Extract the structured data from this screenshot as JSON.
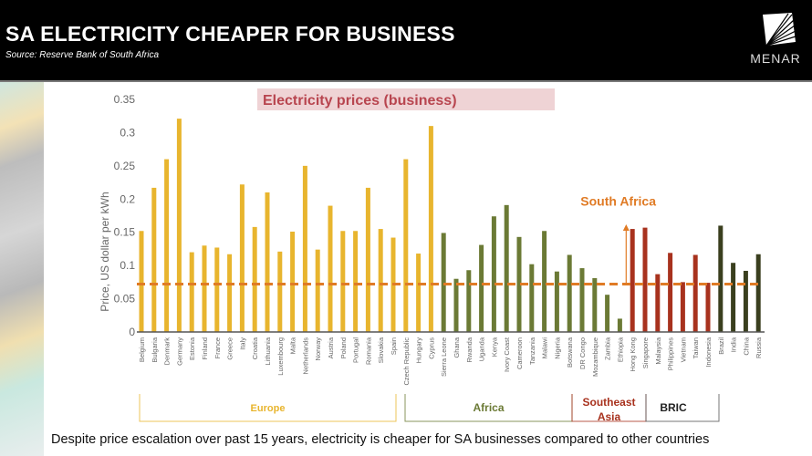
{
  "header": {
    "title": "SA ELECTRICITY CHEAPER FOR BUSINESS",
    "source": "Source: Reserve Bank of South Africa",
    "logo_text": "MENAR",
    "logo_icon": "menar-fan-logo-icon"
  },
  "footer": {
    "caption": "Despite price escalation over past 15 years, electricity is cheaper for SA businesses compared to other countries"
  },
  "colors": {
    "europe": "#E8B52E",
    "africa": "#6B7A35",
    "southeast_asia": "#A8321E",
    "bric": "#3A3F1E",
    "reference_line": "#E07B25",
    "title_banner_bg": "#EFD3D5",
    "title_banner_text": "#B8454F"
  },
  "chart_data": {
    "type": "bar",
    "title": "Electricity prices (business)",
    "xlabel": "",
    "ylabel": "Price, US dollar per kWh",
    "ylim": [
      0,
      0.35
    ],
    "yticks": [
      "0",
      "0.05",
      "0.1",
      "0.15",
      "0.2",
      "0.25",
      "0.3",
      "0.35"
    ],
    "grid": false,
    "reference_line": {
      "label": "South Africa",
      "value": 0.072
    },
    "categories": [
      "Belgium",
      "Bulgaria",
      "Denmark",
      "Germany",
      "Estonia",
      "Finland",
      "France",
      "Greece",
      "Italy",
      "Croatia",
      "Lithuania",
      "Luxembourg",
      "Malta",
      "Netherlands",
      "Norway",
      "Austria",
      "Poland",
      "Portugal",
      "Romania",
      "Slovakia",
      "Spain",
      "Czech Republic",
      "Hungary",
      "Cyprus",
      "Sierra Leone",
      "Ghana",
      "Rwanda",
      "Uganda",
      "Kenya",
      "Ivory Coast",
      "Cameroon",
      "Tanzania",
      "Malawi",
      "Nigeria",
      "Botswana",
      "DR Congo",
      "Mozambique",
      "Zambia",
      "Ethiopia",
      "Hong Kong",
      "Singapore",
      "Malaysia",
      "Philippines",
      "Vietnam",
      "Taiwan",
      "Indonesia",
      "Brazil",
      "India",
      "China",
      "Russia"
    ],
    "values": [
      0.152,
      0.217,
      0.26,
      0.321,
      0.12,
      0.13,
      0.127,
      0.117,
      0.222,
      0.158,
      0.21,
      0.121,
      0.151,
      0.25,
      0.124,
      0.19,
      0.152,
      0.152,
      0.217,
      0.155,
      0.142,
      0.26,
      0.118,
      0.31,
      0.149,
      0.08,
      0.093,
      0.131,
      0.174,
      0.191,
      0.143,
      0.102,
      0.152,
      0.091,
      0.116,
      0.096,
      0.081,
      0.056,
      0.02,
      0.155,
      0.157,
      0.087,
      0.119,
      0.075,
      0.116,
      0.074,
      0.16,
      0.104,
      0.092,
      0.117
    ],
    "groups": [
      {
        "name": "Europe",
        "start": 0,
        "end": 23,
        "color": "#E8B52E"
      },
      {
        "name": "Africa",
        "start": 24,
        "end": 38,
        "color": "#6B7A35"
      },
      {
        "name": "Southeast Asia",
        "start": 39,
        "end": 45,
        "color": "#A8321E"
      },
      {
        "name": "BRIC",
        "start": 46,
        "end": 49,
        "color": "#3A3F1E"
      }
    ],
    "group_labels": [
      "Europe",
      "Africa",
      "Southeast Asia",
      "BRIC"
    ]
  }
}
